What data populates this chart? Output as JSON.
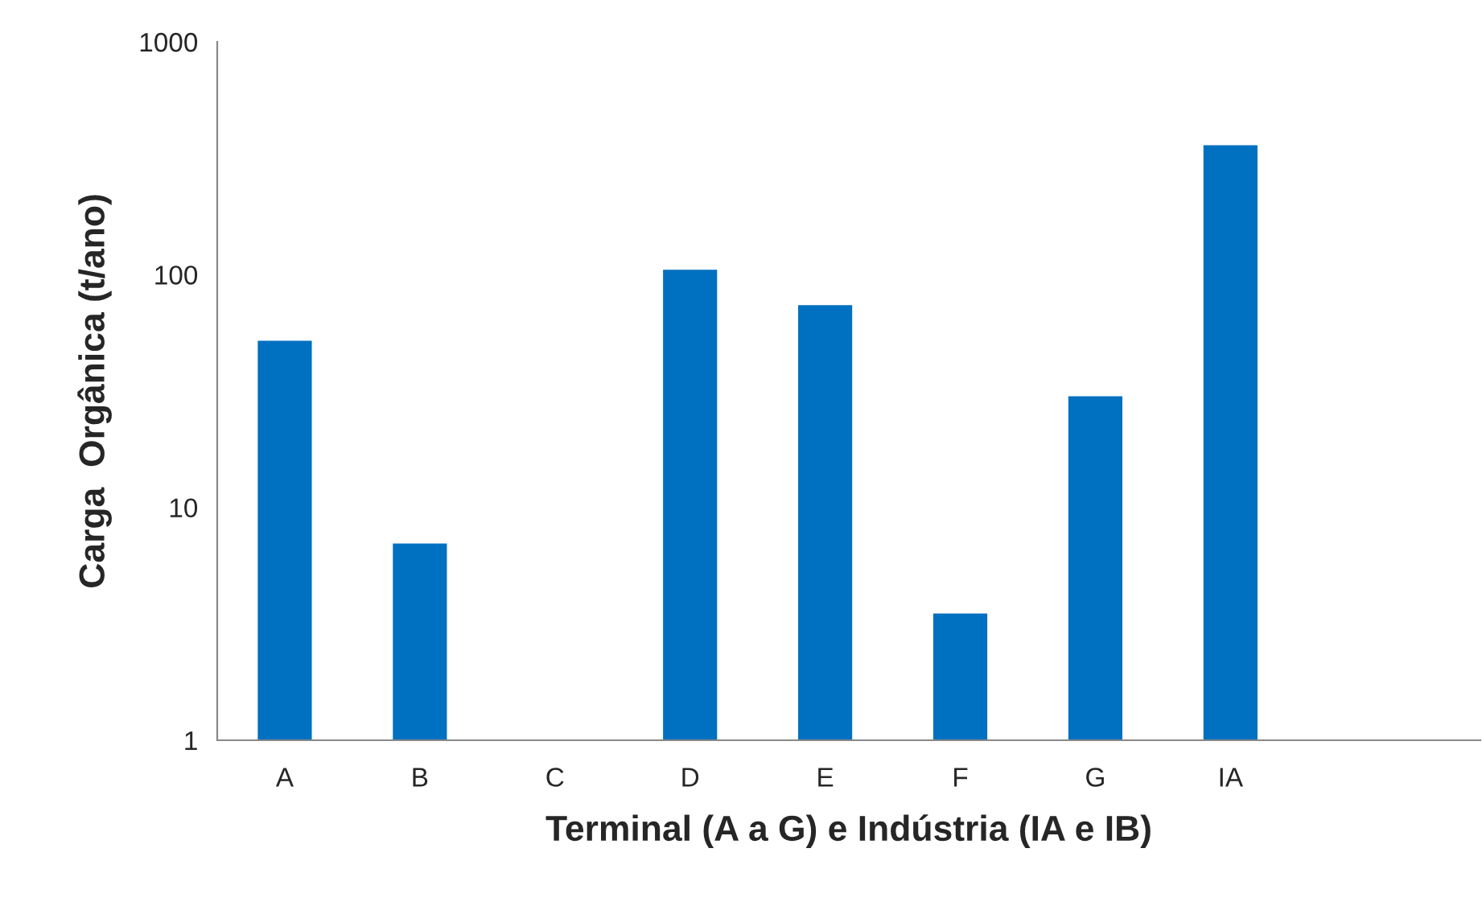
{
  "chart_data": {
    "type": "bar",
    "xlabel": "Terminal (A a G) e Indústria (IA e IB)",
    "ylabel": "Carga  Orgânica (t/ano)",
    "categories": [
      "A",
      "B",
      "C",
      "D",
      "E",
      "F",
      "G",
      "IA"
    ],
    "values": [
      52,
      7,
      null,
      105,
      74,
      3.5,
      30,
      360
    ],
    "color": "#0070c0",
    "log": true,
    "ylim": [
      1,
      1000
    ],
    "yticks": [
      1,
      10,
      100,
      1000
    ],
    "grid": false,
    "legend": false
  }
}
